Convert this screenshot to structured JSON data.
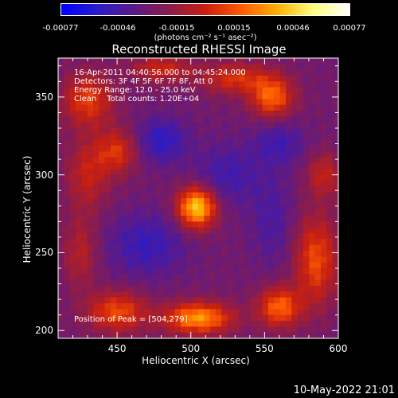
{
  "chart_data": {
    "type": "heatmap",
    "title": "Reconstructed RHESSI Image",
    "xlabel": "Heliocentric X (arcsec)",
    "ylabel": "Heliocentric Y (arcsec)",
    "xlim": [
      410,
      600
    ],
    "ylim": [
      195,
      375
    ],
    "xticks": [
      "450",
      "500",
      "550",
      "600"
    ],
    "xtick_values": [
      450,
      500,
      550,
      600
    ],
    "yticks": [
      "200",
      "250",
      "300",
      "350"
    ],
    "ytick_values": [
      200,
      250,
      300,
      350
    ],
    "colorbar": {
      "ticks": [
        "-0.00077",
        "-0.00046",
        "-0.00015",
        "0.00015",
        "0.00046",
        "0.00077"
      ],
      "unit": "(photons cm⁻² s⁻¹ asec⁻²)",
      "colors": [
        "#0000ff",
        "#2a1cc8",
        "#5a1a8a",
        "#8c1c4a",
        "#c82010",
        "#ff5a00",
        "#ffb000",
        "#ffff80",
        "#ffffff"
      ]
    },
    "annotations": [
      "16-Apr-2011 04:40:56.000 to 04:45:24.000",
      "Detectors: 3F 4F 5F 6F 7F 8F, Att 0",
      "Energy Range: 12.0 - 25.0 keV",
      "Clean    Total counts: 1.20E+04"
    ],
    "peak_label": "Position of Peak = [504,279]",
    "sources": [
      {
        "x": 504,
        "y": 279,
        "amp": 1.0,
        "sx": 9,
        "sy": 9
      },
      {
        "x": 505,
        "y": 208,
        "amp": 0.8,
        "sx": 16,
        "sy": 7
      },
      {
        "x": 450,
        "y": 212,
        "amp": 0.55,
        "sx": 14,
        "sy": 9
      },
      {
        "x": 560,
        "y": 215,
        "amp": 0.65,
        "sx": 10,
        "sy": 9
      },
      {
        "x": 585,
        "y": 245,
        "amp": 0.55,
        "sx": 10,
        "sy": 20
      },
      {
        "x": 555,
        "y": 350,
        "amp": 0.65,
        "sx": 10,
        "sy": 9
      },
      {
        "x": 530,
        "y": 362,
        "amp": 0.45,
        "sx": 16,
        "sy": 7
      },
      {
        "x": 430,
        "y": 348,
        "amp": 0.5,
        "sx": 12,
        "sy": 12
      },
      {
        "x": 450,
        "y": 315,
        "amp": 0.45,
        "sx": 10,
        "sy": 10
      },
      {
        "x": 430,
        "y": 300,
        "amp": 0.35,
        "sx": 10,
        "sy": 16
      },
      {
        "x": 590,
        "y": 300,
        "amp": 0.35,
        "sx": 8,
        "sy": 10
      },
      {
        "x": 480,
        "y": 368,
        "amp": 0.4,
        "sx": 14,
        "sy": 6
      },
      {
        "x": 425,
        "y": 250,
        "amp": 0.3,
        "sx": 8,
        "sy": 16
      },
      {
        "x": 480,
        "y": 322,
        "amp": -0.35,
        "sx": 12,
        "sy": 10
      },
      {
        "x": 525,
        "y": 300,
        "amp": -0.25,
        "sx": 16,
        "sy": 14
      },
      {
        "x": 470,
        "y": 255,
        "amp": -0.3,
        "sx": 18,
        "sy": 14
      },
      {
        "x": 555,
        "y": 270,
        "amp": -0.2,
        "sx": 10,
        "sy": 20
      },
      {
        "x": 560,
        "y": 320,
        "amp": -0.25,
        "sx": 12,
        "sy": 10
      }
    ]
  },
  "date_stamp": "10-May-2022 21:01"
}
